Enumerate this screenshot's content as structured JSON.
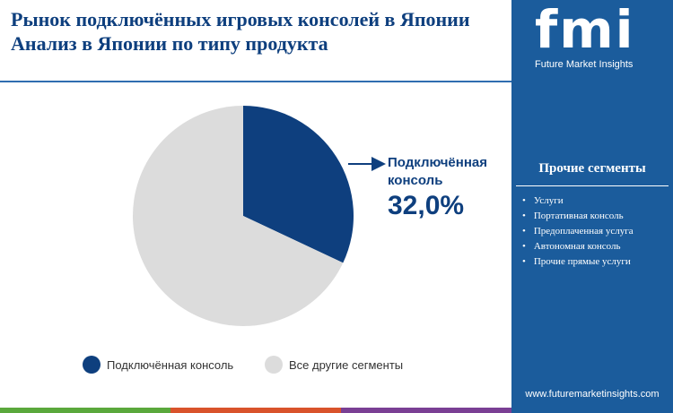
{
  "chart_data": {
    "type": "pie",
    "title": "Рынок подключённых игровых консолей в Японии",
    "subtitle": "Анализ в Японии по типу продукта",
    "categories": [
      "Подключённая консоль",
      "Все другие сегменты"
    ],
    "values": [
      32.0,
      68.0
    ],
    "value_labels": [
      "32,0%",
      null
    ],
    "colors": [
      "#0e3f7e",
      "#dcdcdc"
    ]
  },
  "logo": {
    "mark": "fmi",
    "name": "Future Market Insights"
  },
  "panel": {
    "title": "Прочие сегменты",
    "items": [
      "Услуги",
      "Портативная консоль",
      "Предоплаченная услуга",
      "Автономная консоль",
      "Прочие прямые услуги"
    ]
  },
  "footer": {
    "url": "www.futuremarketinsights.com"
  }
}
